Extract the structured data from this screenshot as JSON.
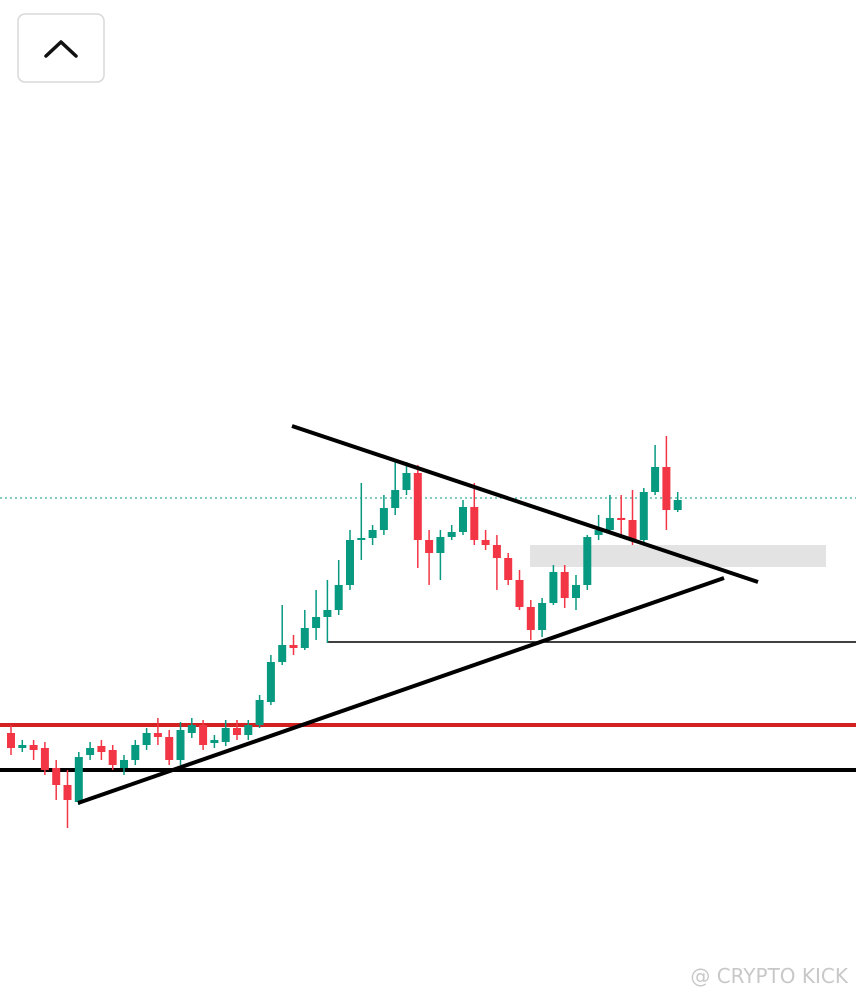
{
  "chart_data": {
    "type": "candlestick",
    "open": [
      267,
      252,
      255,
      252,
      232,
      215,
      198,
      245,
      254,
      250,
      232,
      240,
      255,
      267,
      263,
      240,
      267,
      275,
      257,
      258,
      272,
      265,
      275,
      298,
      338,
      355,
      352,
      372,
      383,
      390,
      415,
      460,
      462,
      470,
      492,
      510,
      527,
      460,
      447,
      463,
      468,
      493,
      460,
      455,
      442,
      420,
      393,
      370,
      397,
      428,
      402,
      415,
      465,
      470,
      482,
      480,
      460,
      508,
      533,
      490
    ],
    "high": [
      275,
      260,
      260,
      258,
      240,
      230,
      248,
      258,
      260,
      255,
      245,
      260,
      272,
      282,
      270,
      278,
      282,
      280,
      265,
      280,
      280,
      280,
      305,
      345,
      395,
      365,
      390,
      410,
      420,
      440,
      470,
      517,
      475,
      505,
      540,
      538,
      535,
      470,
      470,
      475,
      500,
      517,
      470,
      465,
      447,
      430,
      400,
      402,
      435,
      435,
      425,
      465,
      485,
      505,
      505,
      510,
      512,
      555,
      564,
      508
    ],
    "low": [
      245,
      248,
      240,
      225,
      200,
      172,
      195,
      240,
      240,
      230,
      225,
      235,
      250,
      255,
      235,
      235,
      262,
      250,
      252,
      254,
      260,
      260,
      272,
      295,
      335,
      345,
      350,
      360,
      357,
      385,
      410,
      440,
      455,
      465,
      485,
      505,
      432,
      415,
      420,
      460,
      465,
      455,
      450,
      410,
      415,
      390,
      360,
      363,
      395,
      392,
      390,
      410,
      460,
      468,
      465,
      455,
      455,
      505,
      470,
      488
    ],
    "close": [
      252,
      255,
      250,
      230,
      215,
      200,
      243,
      252,
      248,
      235,
      240,
      255,
      267,
      263,
      240,
      270,
      275,
      255,
      260,
      272,
      265,
      275,
      300,
      338,
      355,
      352,
      372,
      383,
      390,
      415,
      460,
      462,
      470,
      492,
      510,
      527,
      460,
      447,
      463,
      468,
      493,
      460,
      455,
      442,
      420,
      393,
      370,
      397,
      428,
      402,
      415,
      463,
      470,
      482,
      480,
      460,
      508,
      533,
      490,
      500
    ],
    "up_color": "#089981",
    "down_color": "#f23645",
    "ylim": [
      0,
      1000
    ]
  },
  "watermark": "@ CRYPTO KICK"
}
